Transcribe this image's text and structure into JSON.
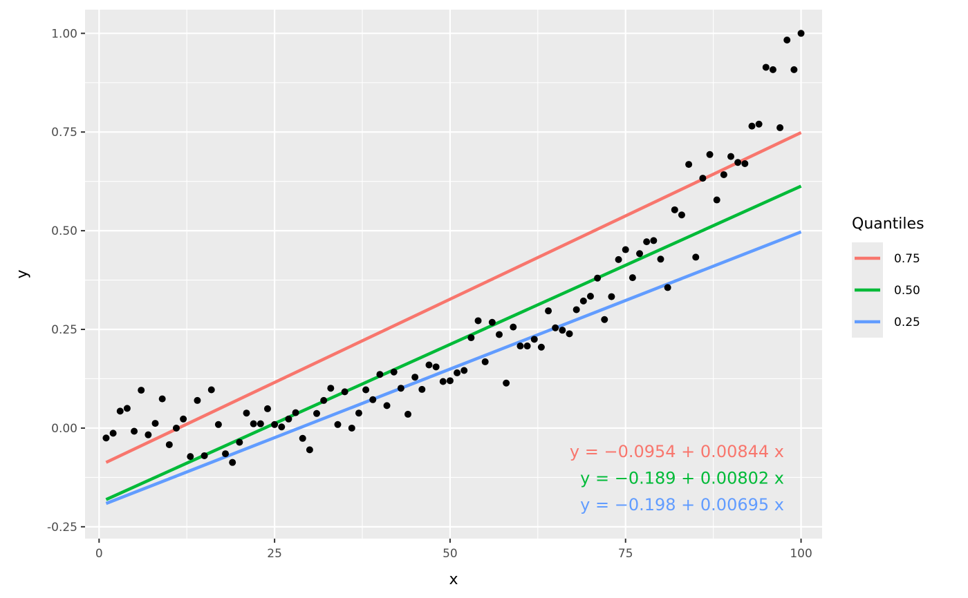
{
  "chart_data": {
    "type": "scatter",
    "xlabel": "x",
    "ylabel": "y",
    "xlim": [
      -2,
      103
    ],
    "ylim": [
      -0.28,
      1.06
    ],
    "x_ticks": [
      0,
      25,
      50,
      75,
      100
    ],
    "x_tick_labels": [
      "0",
      "25",
      "50",
      "75",
      "100"
    ],
    "y_ticks": [
      -0.25,
      0,
      0.25,
      0.5,
      0.75,
      1.0
    ],
    "y_tick_labels": [
      "-0.25",
      "0.00",
      "0.25",
      "0.50",
      "0.75",
      "1.00"
    ],
    "grid": true,
    "legend": {
      "title": "Quantiles",
      "placement": "right",
      "entries": [
        {
          "label": "0.75",
          "color": "#F8766D"
        },
        {
          "label": "0.50",
          "color": "#00BA38"
        },
        {
          "label": "0.25",
          "color": "#619CFF"
        }
      ]
    },
    "lines": [
      {
        "name": "0.75",
        "color": "#F8766D",
        "intercept": -0.0954,
        "slope": 0.00844,
        "x_range": [
          1,
          100
        ]
      },
      {
        "name": "0.50",
        "color": "#00BA38",
        "intercept": -0.189,
        "slope": 0.00802,
        "x_range": [
          1,
          100
        ]
      },
      {
        "name": "0.25",
        "color": "#619CFF",
        "intercept": -0.198,
        "slope": 0.00695,
        "x_range": [
          1,
          100
        ]
      }
    ],
    "equations": [
      {
        "text": "y = −0.0954 + 0.00844 x",
        "color": "#F8766D"
      },
      {
        "text": "y = −0.189 + 0.00802 x",
        "color": "#00BA38"
      },
      {
        "text": "y = −0.198 + 0.00695 x",
        "color": "#619CFF"
      }
    ],
    "points": [
      [
        1,
        -0.025
      ],
      [
        2,
        -0.013
      ],
      [
        3,
        0.043
      ],
      [
        4,
        0.05
      ],
      [
        5,
        -0.008
      ],
      [
        6,
        0.096
      ],
      [
        7,
        -0.017
      ],
      [
        8,
        0.012
      ],
      [
        9,
        0.074
      ],
      [
        10,
        -0.042
      ],
      [
        11,
        0.0
      ],
      [
        12,
        0.023
      ],
      [
        13,
        -0.072
      ],
      [
        14,
        0.07
      ],
      [
        15,
        -0.07
      ],
      [
        16,
        0.097
      ],
      [
        17,
        0.009
      ],
      [
        18,
        -0.065
      ],
      [
        19,
        -0.087
      ],
      [
        20,
        -0.036
      ],
      [
        21,
        0.038
      ],
      [
        22,
        0.011
      ],
      [
        23,
        0.011
      ],
      [
        24,
        0.049
      ],
      [
        25,
        0.009
      ],
      [
        26,
        0.003
      ],
      [
        27,
        0.023
      ],
      [
        28,
        0.039
      ],
      [
        29,
        -0.026
      ],
      [
        30,
        -0.055
      ],
      [
        31,
        0.037
      ],
      [
        32,
        0.07
      ],
      [
        33,
        0.101
      ],
      [
        34,
        0.009
      ],
      [
        35,
        0.092
      ],
      [
        36,
        0.0
      ],
      [
        37,
        0.038
      ],
      [
        38,
        0.097
      ],
      [
        39,
        0.072
      ],
      [
        40,
        0.136
      ],
      [
        41,
        0.057
      ],
      [
        42,
        0.142
      ],
      [
        43,
        0.101
      ],
      [
        44,
        0.035
      ],
      [
        45,
        0.129
      ],
      [
        46,
        0.098
      ],
      [
        47,
        0.16
      ],
      [
        48,
        0.155
      ],
      [
        49,
        0.118
      ],
      [
        50,
        0.12
      ],
      [
        51,
        0.14
      ],
      [
        52,
        0.146
      ],
      [
        53,
        0.229
      ],
      [
        54,
        0.272
      ],
      [
        55,
        0.168
      ],
      [
        56,
        0.268
      ],
      [
        57,
        0.237
      ],
      [
        58,
        0.114
      ],
      [
        59,
        0.256
      ],
      [
        60,
        0.208
      ],
      [
        61,
        0.208
      ],
      [
        62,
        0.225
      ],
      [
        63,
        0.205
      ],
      [
        64,
        0.297
      ],
      [
        65,
        0.254
      ],
      [
        66,
        0.248
      ],
      [
        67,
        0.239
      ],
      [
        68,
        0.3
      ],
      [
        69,
        0.322
      ],
      [
        70,
        0.334
      ],
      [
        71,
        0.38
      ],
      [
        72,
        0.275
      ],
      [
        73,
        0.333
      ],
      [
        74,
        0.427
      ],
      [
        75,
        0.452
      ],
      [
        76,
        0.381
      ],
      [
        77,
        0.442
      ],
      [
        78,
        0.472
      ],
      [
        79,
        0.475
      ],
      [
        80,
        0.428
      ],
      [
        81,
        0.356
      ],
      [
        82,
        0.553
      ],
      [
        83,
        0.54
      ],
      [
        84,
        0.668
      ],
      [
        85,
        0.433
      ],
      [
        86,
        0.633
      ],
      [
        87,
        0.693
      ],
      [
        88,
        0.578
      ],
      [
        89,
        0.642
      ],
      [
        90,
        0.688
      ],
      [
        91,
        0.673
      ],
      [
        92,
        0.67
      ],
      [
        93,
        0.765
      ],
      [
        94,
        0.77
      ],
      [
        95,
        0.914
      ],
      [
        96,
        0.908
      ],
      [
        97,
        0.761
      ],
      [
        98,
        0.983
      ],
      [
        99,
        0.908
      ],
      [
        100,
        1.0
      ]
    ]
  }
}
